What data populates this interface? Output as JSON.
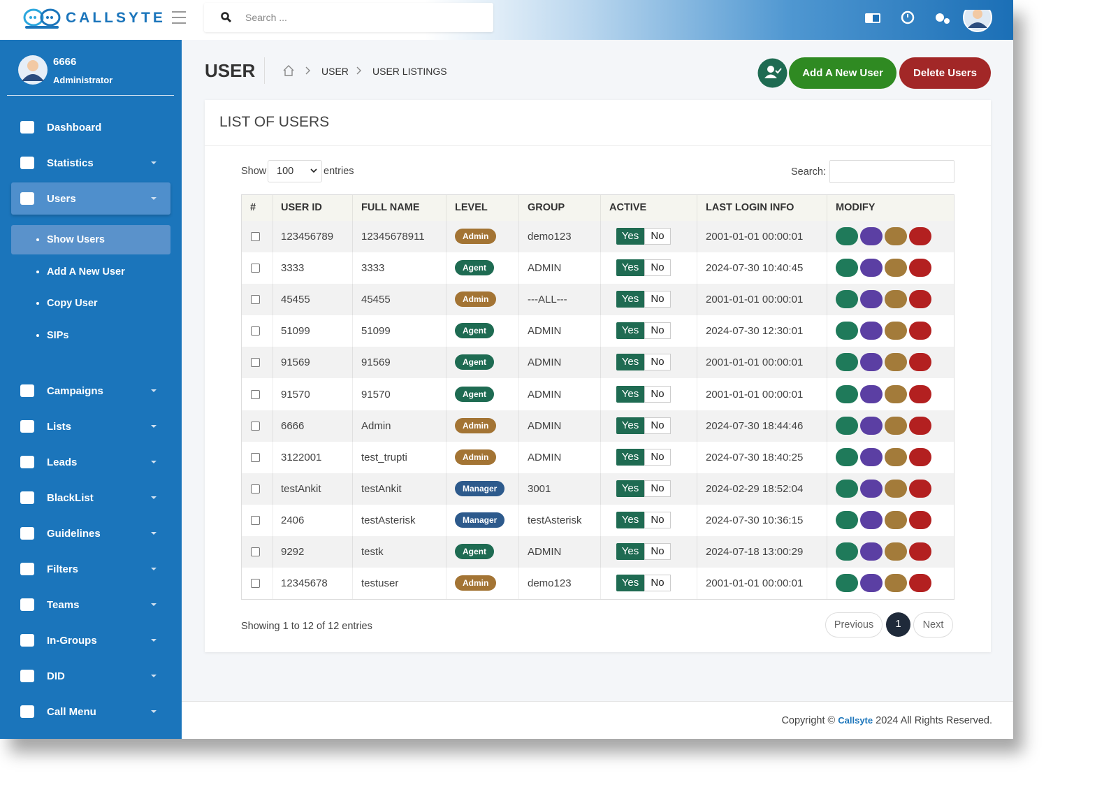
{
  "header": {
    "brand": "CALLSYTE",
    "search_placeholder": "Search ..."
  },
  "sidebar": {
    "user_name": "6666",
    "user_role": "Administrator",
    "menu": [
      {
        "label": "Dashboard",
        "caret": false
      },
      {
        "label": "Statistics",
        "caret": true
      },
      {
        "label": "Users",
        "caret": true,
        "active": true
      }
    ],
    "submenu": [
      {
        "label": "Show Users",
        "active": true
      },
      {
        "label": "Add A New User"
      },
      {
        "label": "Copy User"
      },
      {
        "label": "SIPs"
      }
    ],
    "menu_rest": [
      {
        "label": "Campaigns"
      },
      {
        "label": "Lists"
      },
      {
        "label": "Leads"
      },
      {
        "label": "BlackList"
      },
      {
        "label": "Guidelines"
      },
      {
        "label": "Filters"
      },
      {
        "label": "Teams"
      },
      {
        "label": "In-Groups"
      },
      {
        "label": "DID"
      },
      {
        "label": "Call Menu"
      }
    ]
  },
  "page": {
    "title": "USER",
    "breadcrumb": [
      "USER",
      "USER LISTINGS"
    ],
    "add_button": "Add A New User",
    "delete_button": "Delete Users"
  },
  "card": {
    "title": "LIST OF USERS",
    "show": "Show",
    "entries_value": "100",
    "entries": "entries",
    "search": "Search:"
  },
  "table": {
    "columns": [
      "#",
      "USER ID",
      "FULL NAME",
      "LEVEL",
      "GROUP",
      "ACTIVE",
      "LAST LOGIN INFO",
      "MODIFY"
    ],
    "active_options": [
      "Yes",
      "No"
    ],
    "rows": [
      {
        "user_id": "123456789",
        "full_name": "12345678911",
        "level": "Admin",
        "group": "demo123",
        "last_login": "2001-01-01 00:00:01"
      },
      {
        "user_id": "3333",
        "full_name": "3333",
        "level": "Agent",
        "group": "ADMIN",
        "last_login": "2024-07-30 10:40:45"
      },
      {
        "user_id": "45455",
        "full_name": "45455",
        "level": "Admin",
        "group": "---ALL---",
        "last_login": "2001-01-01 00:00:01"
      },
      {
        "user_id": "51099",
        "full_name": "51099",
        "level": "Agent",
        "group": "ADMIN",
        "last_login": "2024-07-30 12:30:01"
      },
      {
        "user_id": "91569",
        "full_name": "91569",
        "level": "Agent",
        "group": "ADMIN",
        "last_login": "2001-01-01 00:00:01"
      },
      {
        "user_id": "91570",
        "full_name": "91570",
        "level": "Agent",
        "group": "ADMIN",
        "last_login": "2001-01-01 00:00:01"
      },
      {
        "user_id": "6666",
        "full_name": "Admin",
        "level": "Admin",
        "group": "ADMIN",
        "last_login": "2024-07-30 18:44:46"
      },
      {
        "user_id": "3122001",
        "full_name": "test_trupti",
        "level": "Admin",
        "group": "ADMIN",
        "last_login": "2024-07-30 18:40:25"
      },
      {
        "user_id": "testAnkit",
        "full_name": "testAnkit",
        "level": "Manager",
        "group": "3001",
        "last_login": "2024-02-29 18:52:04"
      },
      {
        "user_id": "2406",
        "full_name": "testAsterisk",
        "level": "Manager",
        "group": "testAsterisk",
        "last_login": "2024-07-30 10:36:15"
      },
      {
        "user_id": "9292",
        "full_name": "testk",
        "level": "Agent",
        "group": "ADMIN",
        "last_login": "2024-07-18 13:00:29"
      },
      {
        "user_id": "12345678",
        "full_name": "testuser",
        "level": "Admin",
        "group": "demo123",
        "last_login": "2001-01-01 00:00:01"
      }
    ]
  },
  "pagination": {
    "info": "Showing 1 to 12 of 12 entries",
    "previous": "Previous",
    "current": "1",
    "next": "Next"
  },
  "footer": {
    "copyright": "Copyright ©",
    "brand": "Callsyte",
    "rights": "2024 All Rights Reserved."
  }
}
